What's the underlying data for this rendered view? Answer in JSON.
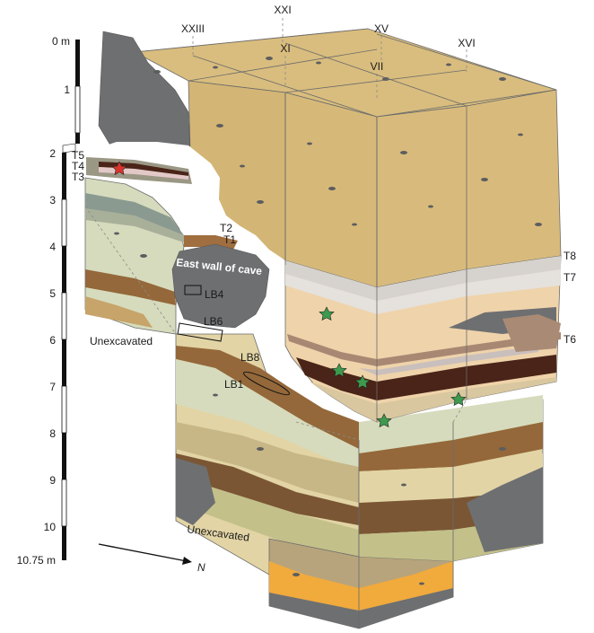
{
  "scale": {
    "labels": [
      "0 m",
      "1",
      "2",
      "3",
      "4",
      "5",
      "6",
      "7",
      "8",
      "9",
      "10",
      "10.75 m"
    ]
  },
  "grid_squares": [
    "XXIII",
    "XXI",
    "XI",
    "XV",
    "VII",
    "XVI"
  ],
  "layers_left": [
    "T5",
    "T4",
    "T3",
    "T2",
    "T1"
  ],
  "layers_right": [
    "T8",
    "T7",
    "T6"
  ],
  "samples": [
    "LB4",
    "LB6",
    "LB8",
    "LB1"
  ],
  "cave_wall_label": "East wall of cave",
  "unexcavated": [
    "Unexcavated",
    "Unexcavated"
  ],
  "north_label": "N",
  "colors": {
    "upper_fill": "#d8bb7c",
    "light_green": "#d6dbbd",
    "olive": "#c3c08a",
    "brown": "#94683a",
    "dark_brown": "#4a2418",
    "rock": "#6d6e70",
    "orange": "#f1aa3c",
    "pink_tan": "#efd3aa",
    "grey_band": "#d8d4d0",
    "star_green": "#3d9a4e",
    "star_red": "#d9342b"
  }
}
